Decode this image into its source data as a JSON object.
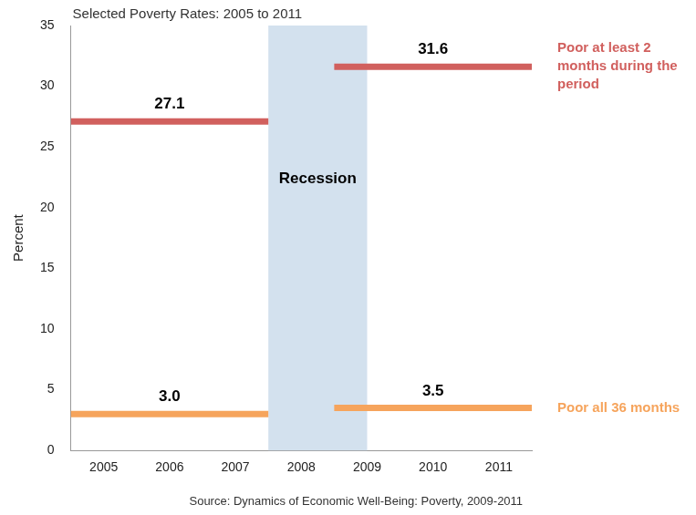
{
  "chart_data": {
    "type": "line",
    "title": "Selected Poverty Rates: 2005 to 2011",
    "y_label": "Percent",
    "source": "Source: Dynamics of Economic Well-Being: Poverty, 2009-2011",
    "xlim": [
      2004.5,
      2011.5
    ],
    "xticks": [
      2005,
      2006,
      2007,
      2008,
      2009,
      2010,
      2011
    ],
    "ylim": [
      0,
      35
    ],
    "yticks": [
      0,
      5,
      10,
      15,
      20,
      25,
      30,
      35
    ],
    "grid": false,
    "legend": "right",
    "data_labels": true,
    "annotations": [
      {
        "text": "Recession",
        "start": 2007.5,
        "end": 2009
      }
    ],
    "series": [
      {
        "name": "Poor at least 2 months during the period",
        "color": "#d1605e",
        "segments": [
          {
            "start": 2004.5,
            "end": 2007.5,
            "value": 27.1,
            "label": "27.1"
          },
          {
            "start": 2008.5,
            "end": 2011.5,
            "value": 31.6,
            "label": "31.6"
          }
        ]
      },
      {
        "name": "Poor all 36 months",
        "color": "#f6a45c",
        "segments": [
          {
            "start": 2004.5,
            "end": 2007.5,
            "value": 3.0,
            "label": "3.0"
          },
          {
            "start": 2008.5,
            "end": 2011.5,
            "value": 3.5,
            "label": "3.5"
          }
        ]
      }
    ]
  }
}
